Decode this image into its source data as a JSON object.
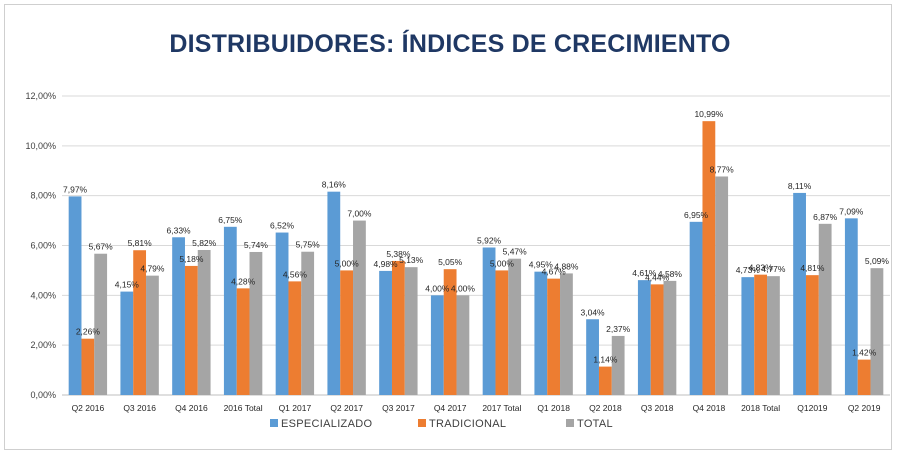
{
  "chart_data": {
    "type": "bar",
    "title": "DISTRIBUIDORES: ÍNDICES DE CRECIMIENTO",
    "xlabel": "",
    "ylabel": "",
    "ylim": [
      0,
      12
    ],
    "yticks": [
      "0,00%",
      "2,00%",
      "4,00%",
      "6,00%",
      "8,00%",
      "10,00%",
      "12,00%"
    ],
    "grid": true,
    "legend_position": "bottom",
    "categories": [
      "Q2 2016",
      "Q3 2016",
      "Q4 2016",
      "2016 Total",
      "Q1 2017",
      "Q2 2017",
      "Q3 2017",
      "Q4 2017",
      "2017 Total",
      "Q1 2018",
      "Q2 2018",
      "Q3 2018",
      "Q4 2018",
      "2018 Total",
      "Q12019",
      "Q2 2019"
    ],
    "series": [
      {
        "name": "ESPECIALIZADO",
        "color": "#5b9bd5",
        "values": [
          7.97,
          4.15,
          6.33,
          6.75,
          6.52,
          8.16,
          4.98,
          4.0,
          5.92,
          4.95,
          3.04,
          4.61,
          6.95,
          4.73,
          8.11,
          7.09
        ],
        "labels": [
          "7,97%",
          "4,15%",
          "6,33%",
          "6,75%",
          "6,52%",
          "8,16%",
          "4,98%",
          "4,00%",
          "5,92%",
          "4,95%",
          "3,04%",
          "4,61%",
          "6,95%",
          "4,73%",
          "8,11%",
          "7,09%"
        ]
      },
      {
        "name": "TRADICIONAL",
        "color": "#ed7d31",
        "values": [
          2.26,
          5.81,
          5.18,
          4.28,
          4.56,
          5.0,
          5.38,
          5.05,
          5.0,
          4.67,
          1.14,
          4.44,
          10.99,
          4.83,
          4.81,
          1.42
        ],
        "labels": [
          "2,26%",
          "5,81%",
          "5,18%",
          "4,28%",
          "4,56%",
          "5,00%",
          "5,38%",
          "5,05%",
          "5,00%",
          "4,67%",
          "1,14%",
          "4,44%",
          "10,99%",
          "4,83%",
          "4,81%",
          "1,42%"
        ]
      },
      {
        "name": "TOTAL",
        "color": "#a5a5a5",
        "values": [
          5.67,
          4.79,
          5.82,
          5.74,
          5.75,
          7.0,
          5.13,
          4.0,
          5.47,
          4.88,
          2.37,
          4.58,
          8.77,
          4.77,
          6.87,
          5.09
        ],
        "labels": [
          "5,67%",
          "4,79%",
          "5,82%",
          "5,74%",
          "5,75%",
          "7,00%",
          "5,13%",
          "4,00%",
          "5,47%",
          "4,88%",
          "2,37%",
          "4,58%",
          "8,77%",
          "4,77%",
          "6,87%",
          "5,09%"
        ]
      }
    ]
  }
}
